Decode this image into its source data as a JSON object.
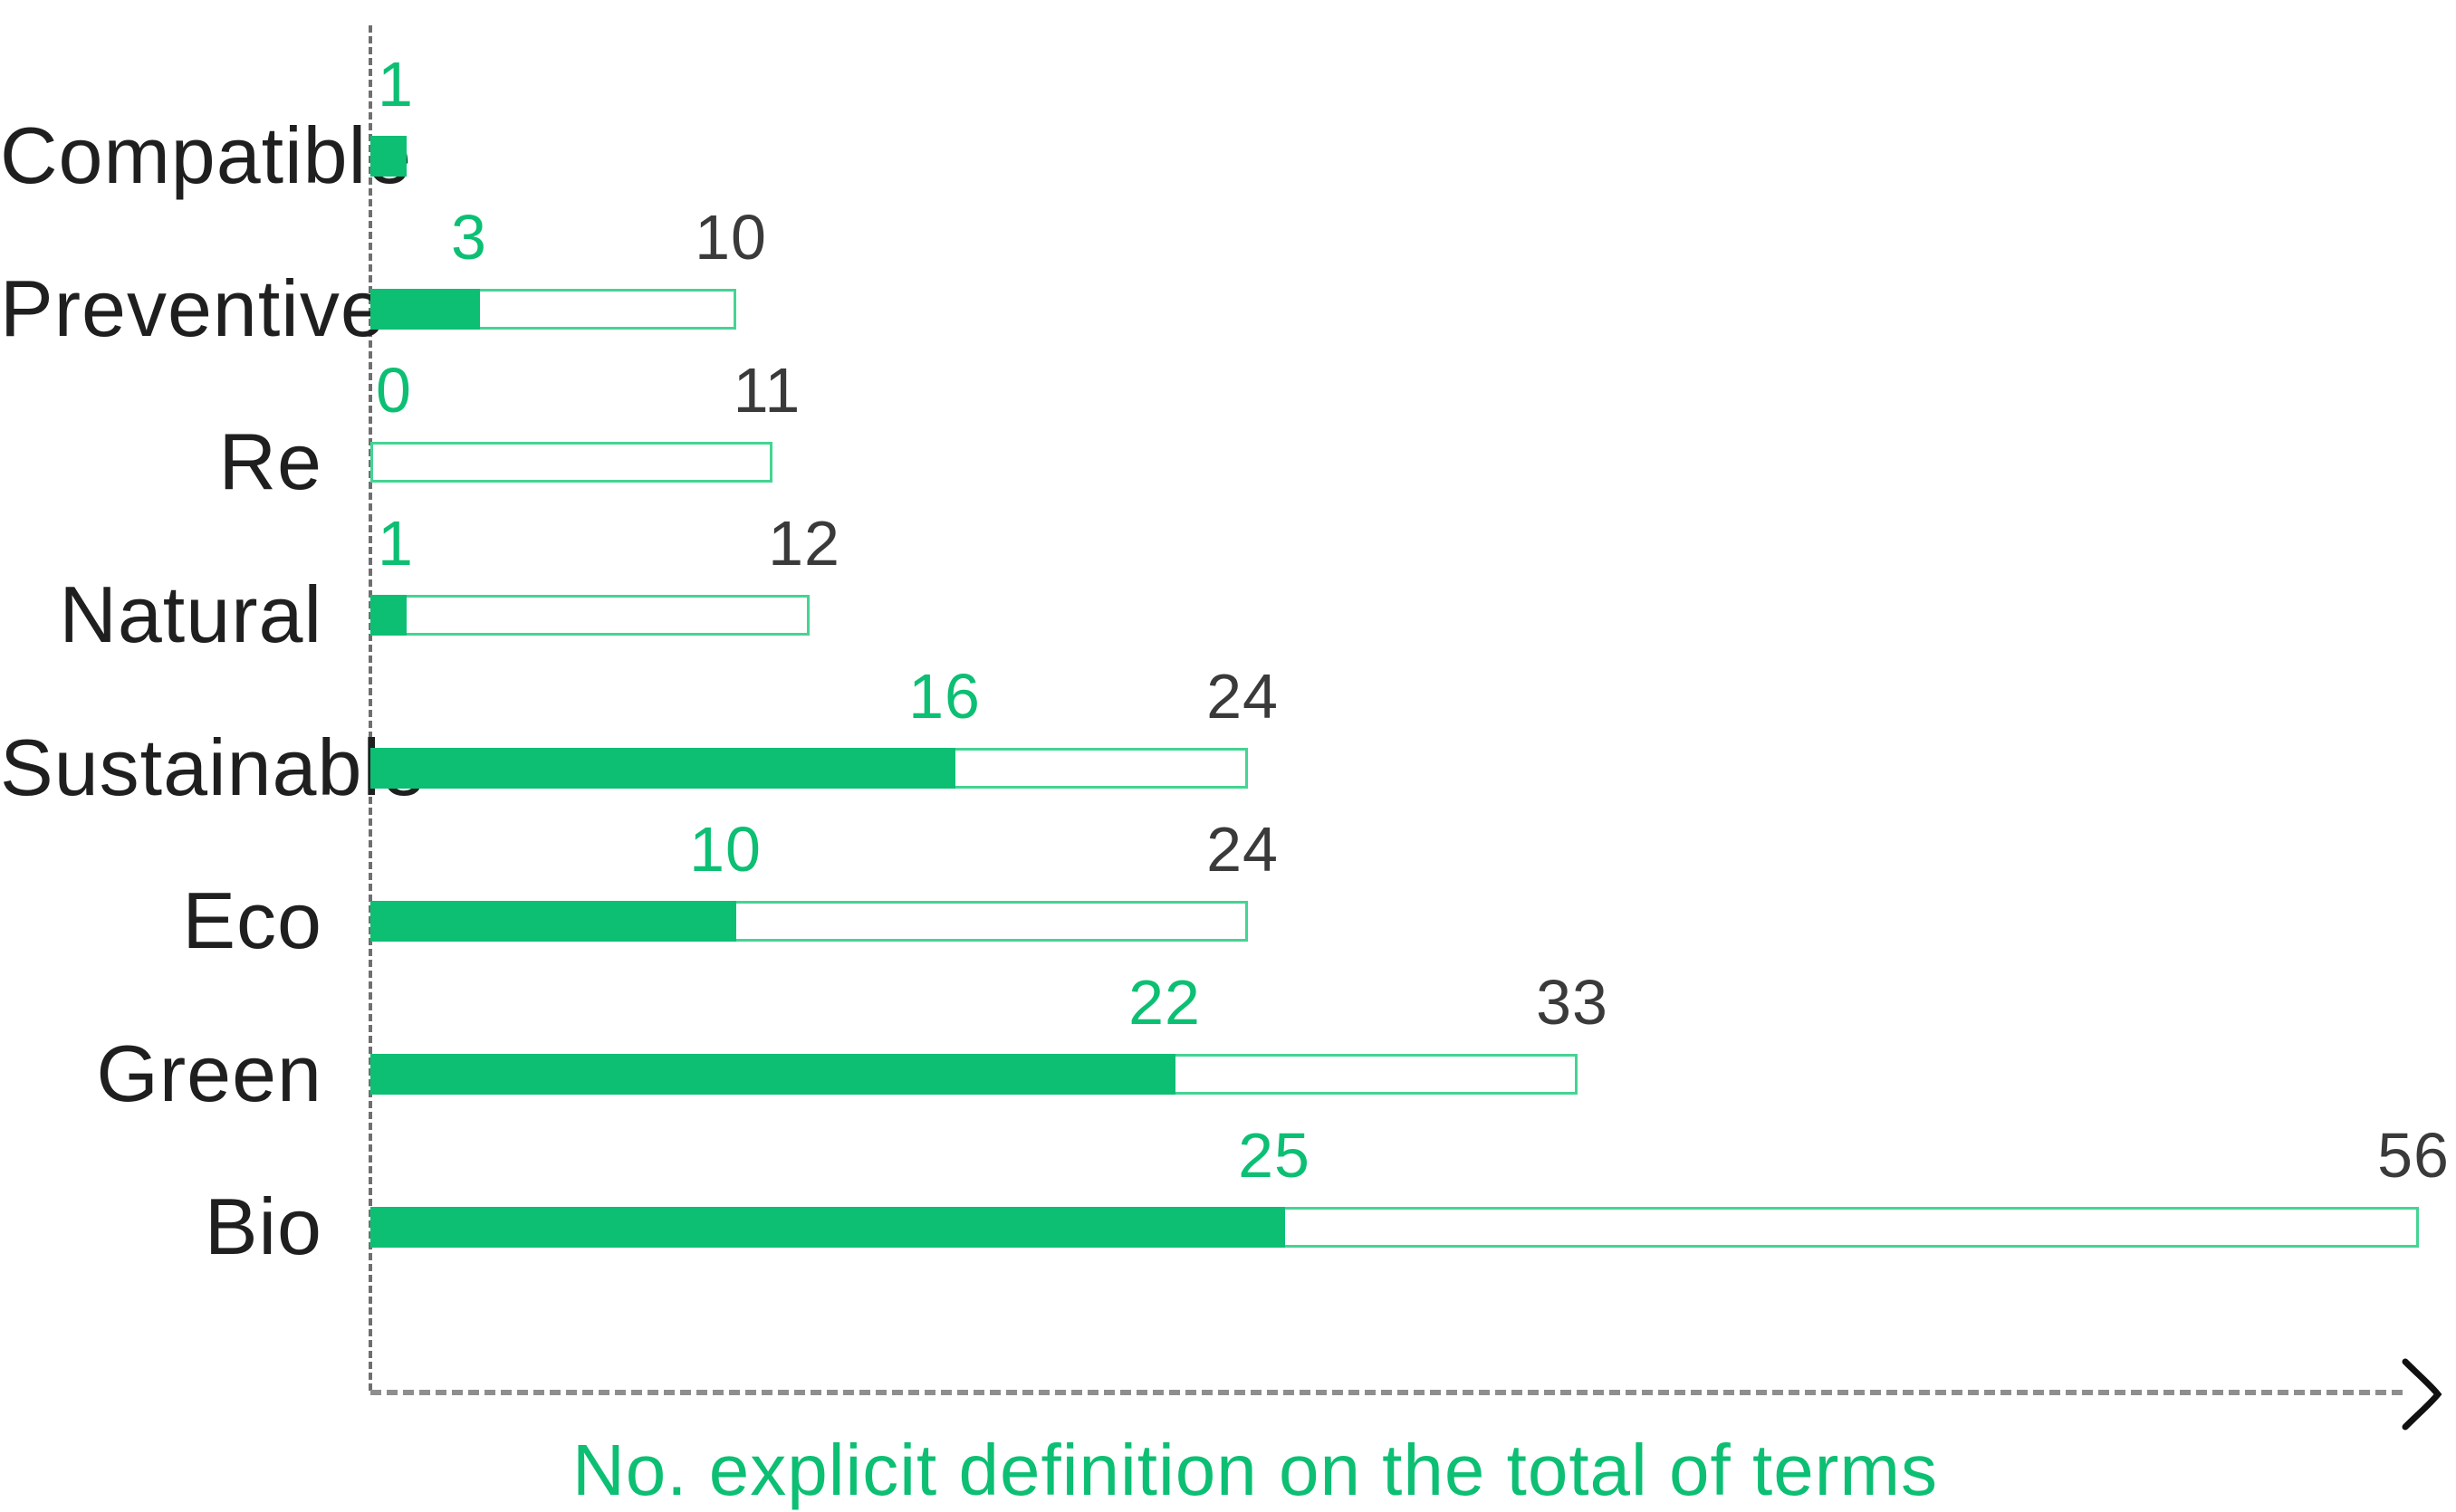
{
  "chart_data": {
    "type": "bar",
    "orientation": "horizontal",
    "title": "",
    "xlabel": "No. explicit definition on the total of terms",
    "ylabel": "",
    "xlim": [
      0,
      56
    ],
    "grid": false,
    "legend": "none",
    "categories": [
      "Compatible",
      "Preventive",
      "Re",
      "Natural",
      "Sustainable",
      "Eco",
      "Green",
      "Bio"
    ],
    "series": [
      {
        "name": "explicit-definitions",
        "style": "filled",
        "values": [
          1,
          3,
          0,
          1,
          16,
          10,
          22,
          25
        ]
      },
      {
        "name": "total-of-terms",
        "style": "outlined",
        "values": [
          null,
          10,
          11,
          12,
          24,
          24,
          33,
          56
        ]
      }
    ],
    "value_labels": {
      "explicit_definitions": [
        "1",
        "3",
        "0",
        "1",
        "16",
        "10",
        "22",
        "25"
      ],
      "total_of_terms": [
        "",
        "10",
        "11",
        "12",
        "24",
        "24",
        "33",
        "56"
      ]
    },
    "colors": {
      "bar_fill_green": "#0cbf73",
      "bar_outline_green": "#44d493",
      "value_label_green": "#0cbf73",
      "value_label_dark": "#3a3a3a",
      "category_text": "#1f1f1f",
      "axis_dash_gray": "#8e8e8e",
      "arrow_black": "#111111"
    }
  }
}
